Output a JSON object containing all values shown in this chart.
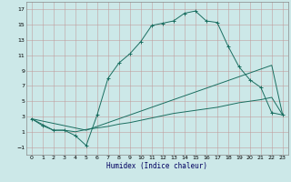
{
  "bg_color": "#cce8e8",
  "grid_color": "#b8a8a8",
  "line_color": "#1a6e60",
  "xlabel": "Humidex (Indice chaleur)",
  "xlim": [
    -0.5,
    23.5
  ],
  "ylim": [
    -2.0,
    18.0
  ],
  "xticks": [
    0,
    1,
    2,
    3,
    4,
    5,
    6,
    7,
    8,
    9,
    10,
    11,
    12,
    13,
    14,
    15,
    16,
    17,
    18,
    19,
    20,
    21,
    22,
    23
  ],
  "yticks": [
    -1,
    1,
    3,
    5,
    7,
    9,
    11,
    13,
    15,
    17
  ],
  "curve1_x": [
    0,
    1,
    2,
    3,
    4,
    5,
    6,
    7,
    8,
    9,
    10,
    11,
    12,
    13,
    14,
    15,
    16,
    17,
    18,
    19,
    20,
    21,
    22,
    23
  ],
  "curve1_y": [
    2.7,
    1.8,
    1.2,
    1.2,
    0.5,
    -0.8,
    3.2,
    8.0,
    10.0,
    11.2,
    12.8,
    14.9,
    15.2,
    15.5,
    16.5,
    16.8,
    15.5,
    15.3,
    12.2,
    9.5,
    7.8,
    6.8,
    3.5,
    3.2
  ],
  "curve2_x": [
    0,
    5,
    22,
    23
  ],
  "curve2_y": [
    2.7,
    1.2,
    9.7,
    3.2
  ],
  "curve3_x": [
    0,
    2,
    3,
    4,
    5,
    6,
    7,
    8,
    9,
    10,
    11,
    12,
    13,
    14,
    15,
    16,
    17,
    18,
    19,
    20,
    21,
    22,
    23
  ],
  "curve3_y": [
    2.7,
    1.2,
    1.2,
    1.0,
    1.3,
    1.5,
    1.7,
    2.0,
    2.2,
    2.5,
    2.8,
    3.1,
    3.4,
    3.6,
    3.8,
    4.0,
    4.2,
    4.5,
    4.8,
    5.0,
    5.2,
    5.5,
    3.2
  ]
}
